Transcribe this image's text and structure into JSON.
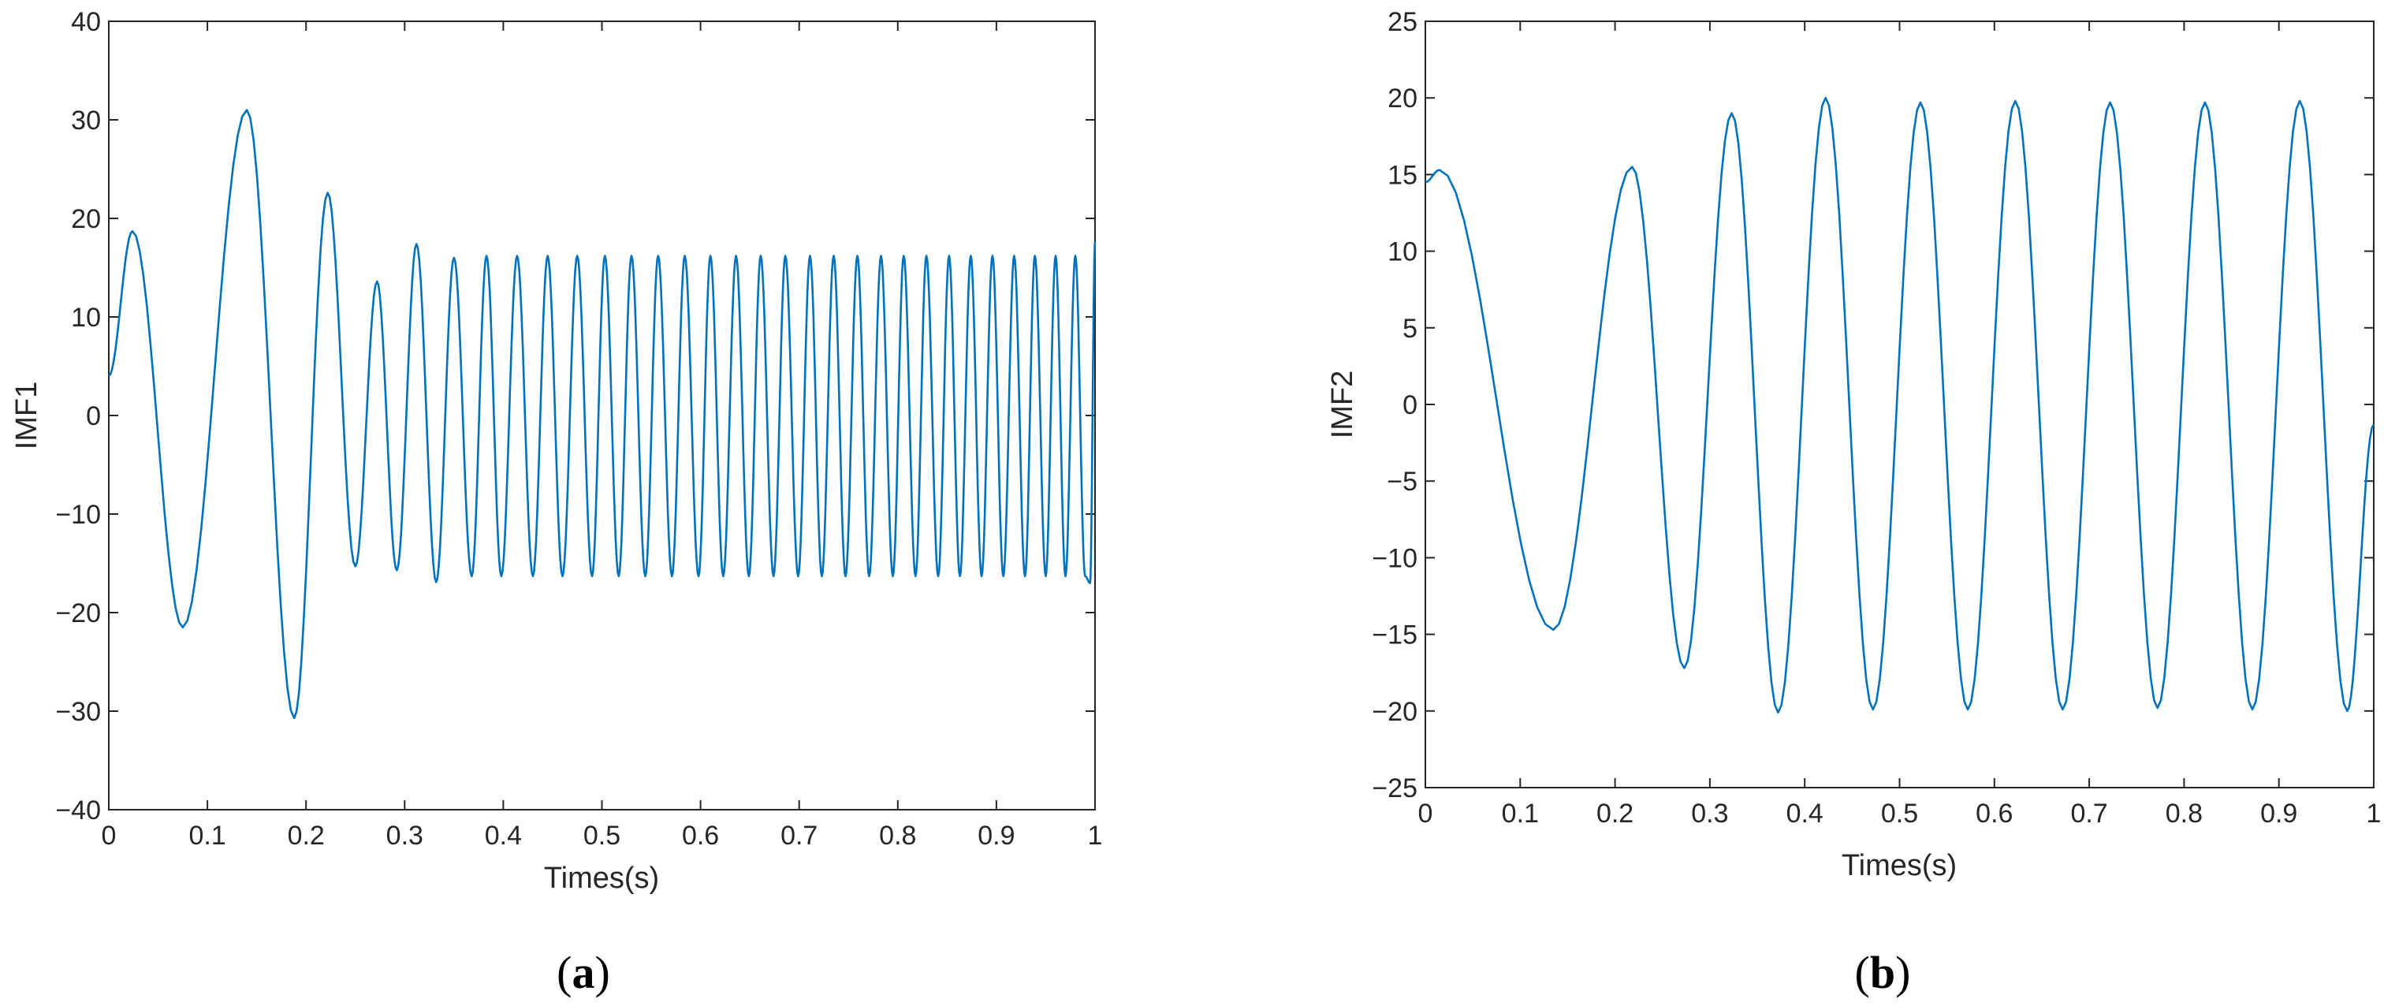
{
  "colors": {
    "series": "#0072BD",
    "axes": "#262626",
    "background": "#ffffff"
  },
  "chart_data": [
    {
      "type": "line",
      "panel": "(a)",
      "panel_letter": "a",
      "xlabel": "Times(s)",
      "ylabel": "IMF1",
      "xlim": [
        0,
        1
      ],
      "ylim": [
        -40,
        40
      ],
      "grid": false,
      "xticks": [
        0,
        0.1,
        0.2,
        0.3,
        0.4,
        0.5,
        0.6,
        0.7,
        0.8,
        0.9,
        1
      ],
      "xtick_labels": [
        "0",
        "0.1",
        "0.2",
        "0.3",
        "0.4",
        "0.5",
        "0.6",
        "0.7",
        "0.8",
        "0.9",
        "1"
      ],
      "yticks": [
        -40,
        -30,
        -20,
        -10,
        0,
        10,
        20,
        30,
        40
      ],
      "ytick_labels": [
        "−40",
        "−30",
        "−20",
        "−10",
        "0",
        "10",
        "20",
        "30",
        "40"
      ],
      "series": [
        {
          "x": [
            0,
            0.024,
            0.075,
            0.14,
            0.188,
            0.222,
            0.25,
            0.272,
            0.292,
            0.312,
            0.332,
            0.35,
            0.368,
            0.383,
            0.398,
            0.414,
            0.43,
            0.445,
            0.46,
            0.475,
            0.49,
            0.503,
            0.517,
            0.53,
            0.544,
            0.557,
            0.571,
            0.584,
            0.598,
            0.61,
            0.623,
            0.636,
            0.649,
            0.661,
            0.674,
            0.686,
            0.699,
            0.711,
            0.723,
            0.735,
            0.747,
            0.759,
            0.771,
            0.783,
            0.795,
            0.806,
            0.818,
            0.829,
            0.841,
            0.852,
            0.863,
            0.874,
            0.885,
            0.896,
            0.907,
            0.918,
            0.929,
            0.939,
            0.95,
            0.96,
            0.97,
            0.98,
            0.99,
            0.995,
            1.0
          ],
          "y": [
            4,
            18.7,
            -21.5,
            31,
            -30.7,
            22.6,
            -15.3,
            13.6,
            -15.7,
            17.4,
            -16.9,
            16,
            -16.3,
            16.2,
            -16.3,
            16.2,
            -16.3,
            16.2,
            -16.3,
            16.2,
            -16.3,
            16.2,
            -16.3,
            16.2,
            -16.3,
            16.2,
            -16.3,
            16.2,
            -16.3,
            16.2,
            -16.3,
            16.2,
            -16.3,
            16.2,
            -16.3,
            16.2,
            -16.3,
            16.2,
            -16.3,
            16.2,
            -16.3,
            16.2,
            -16.3,
            16.2,
            -16.3,
            16.2,
            -16.3,
            16.2,
            -16.3,
            16.2,
            -16.3,
            16.2,
            -16.3,
            16.2,
            -16.3,
            16.2,
            -16.3,
            16.2,
            -16.3,
            16.2,
            -16.3,
            16.2,
            -16.3,
            -17,
            17.6
          ]
        }
      ]
    },
    {
      "type": "line",
      "panel": "(b)",
      "panel_letter": "b",
      "xlabel": "Times(s)",
      "ylabel": "IMF2",
      "xlim": [
        0,
        1
      ],
      "ylim": [
        -25,
        25
      ],
      "grid": false,
      "xticks": [
        0,
        0.1,
        0.2,
        0.3,
        0.4,
        0.5,
        0.6,
        0.7,
        0.8,
        0.9,
        1
      ],
      "xtick_labels": [
        "0",
        "0.1",
        "0.2",
        "0.3",
        "0.4",
        "0.5",
        "0.6",
        "0.7",
        "0.8",
        "0.9",
        "1"
      ],
      "yticks": [
        -25,
        -20,
        -15,
        -10,
        -5,
        0,
        5,
        10,
        15,
        20,
        25
      ],
      "ytick_labels": [
        "−25",
        "−20",
        "−15",
        "−10",
        "−5",
        "0",
        "5",
        "10",
        "15",
        "20",
        "25"
      ],
      "series": [
        {
          "x": [
            0,
            0.015,
            0.135,
            0.218,
            0.273,
            0.323,
            0.372,
            0.422,
            0.472,
            0.522,
            0.572,
            0.622,
            0.672,
            0.722,
            0.772,
            0.822,
            0.872,
            0.922,
            0.972,
            1.0
          ],
          "y": [
            14.5,
            15.3,
            -14.7,
            15.5,
            -17.2,
            19,
            -20.1,
            20,
            -19.9,
            19.7,
            -19.9,
            19.8,
            -19.9,
            19.7,
            -19.8,
            19.7,
            -19.9,
            19.8,
            -20,
            -1.3
          ]
        }
      ]
    }
  ]
}
